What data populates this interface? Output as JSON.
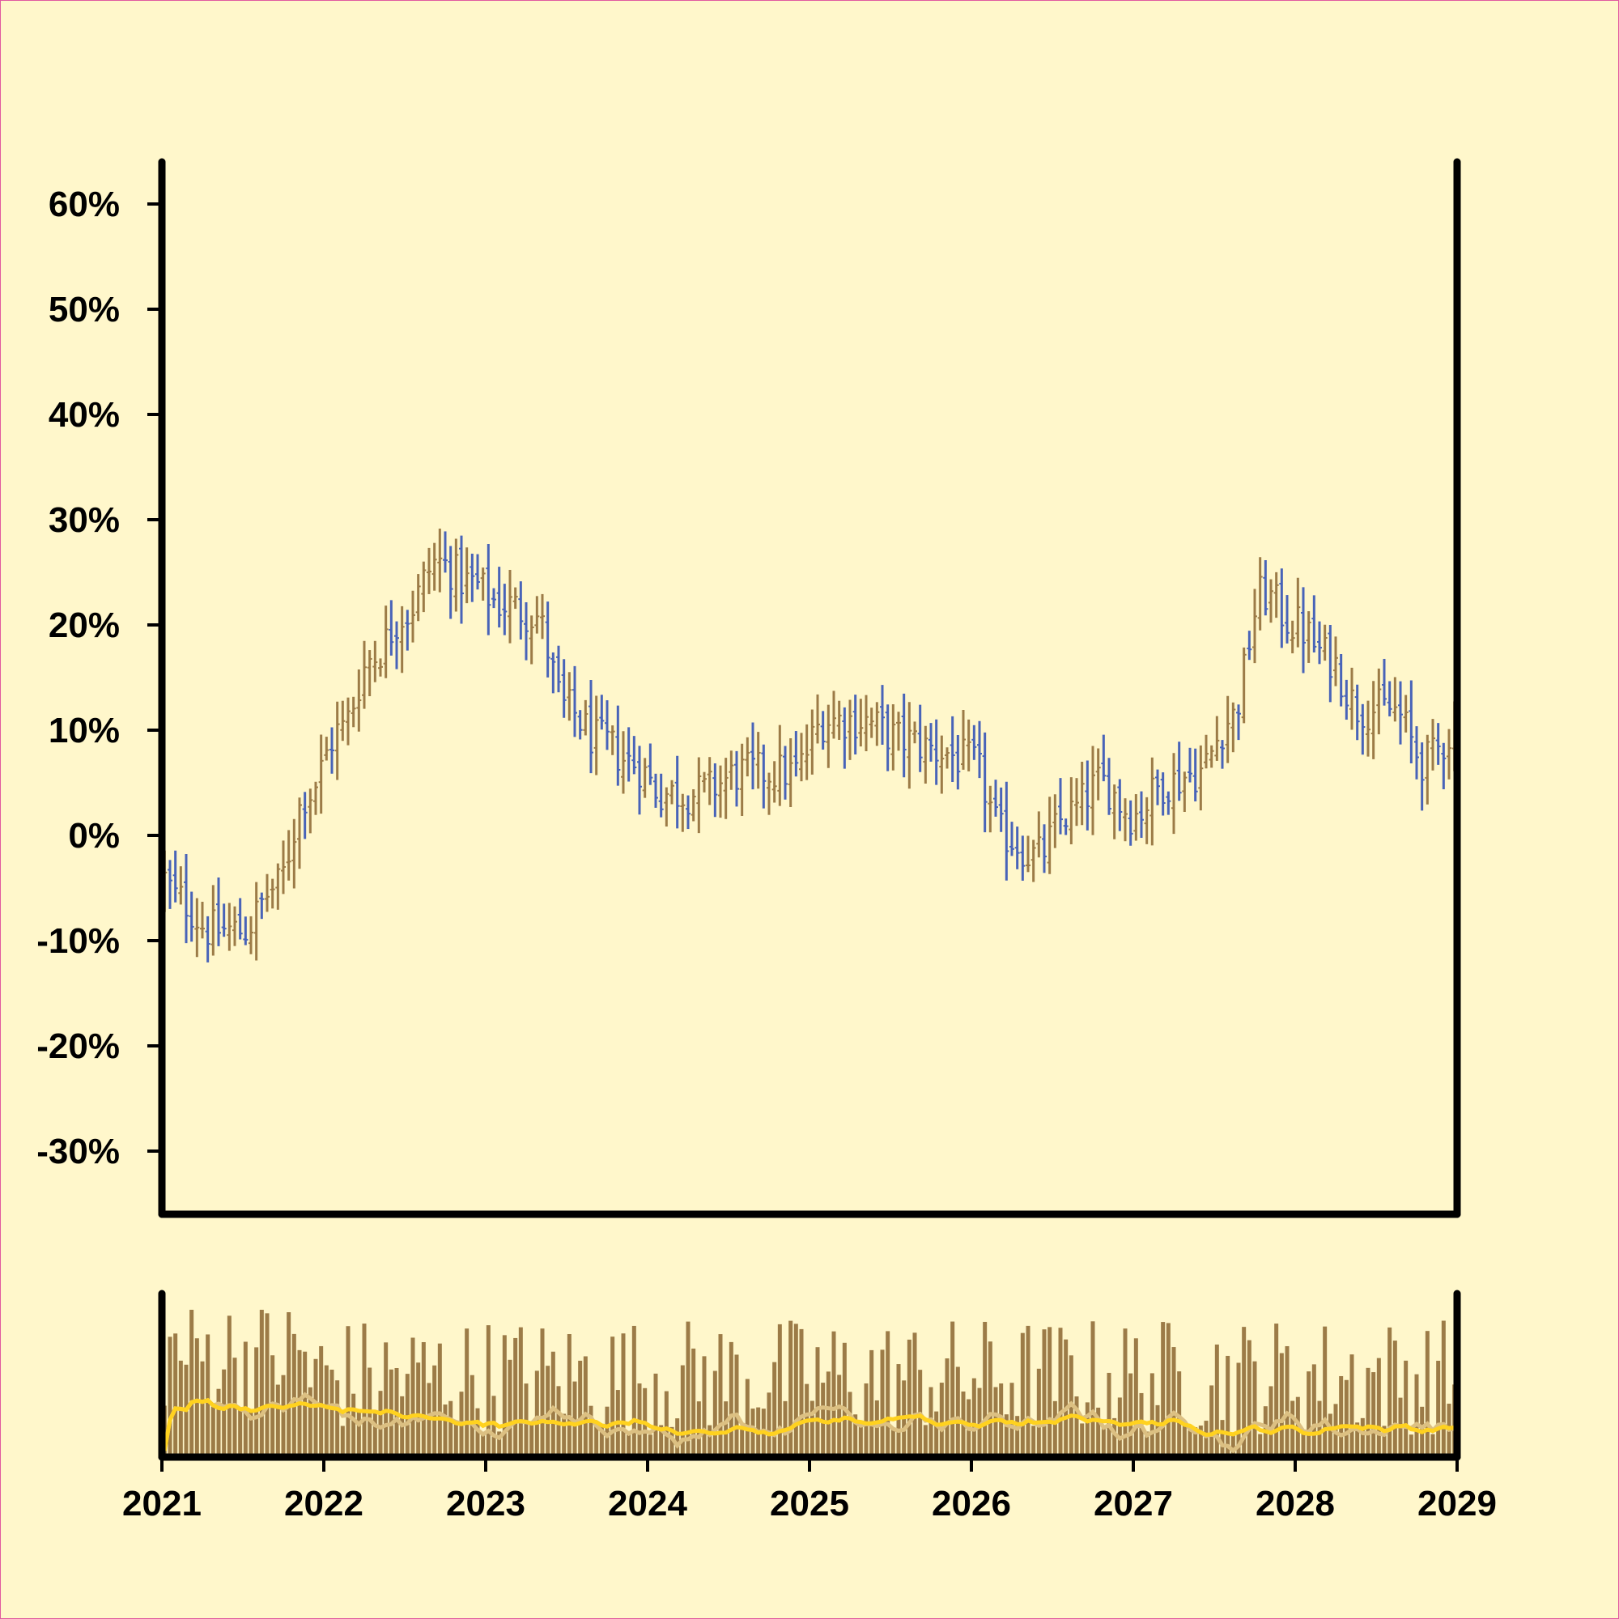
{
  "colors": {
    "background": "#fff7cb",
    "border": "#e05aa0",
    "axis": "#000000",
    "up_bar": "#9c7b47",
    "down_bar": "#4863b8",
    "volume": "#9c7b47",
    "ma_fast": "#dcc082",
    "ma_slow": "#ffd21f"
  },
  "chart_data": [
    {
      "type": "ohlc",
      "title": "",
      "xlabel": "",
      "ylabel": "",
      "ylim": [
        -36,
        64
      ],
      "xlim": [
        2021,
        2029
      ],
      "y_ticks": [
        -30,
        -20,
        -10,
        0,
        10,
        20,
        30,
        40,
        50,
        60
      ],
      "y_tick_labels": [
        "-30%",
        "-20%",
        "-10%",
        "0%",
        "10%",
        "20%",
        "30%",
        "40%",
        "50%",
        "60%"
      ],
      "x_ticks": [
        2021,
        2022,
        2023,
        2024,
        2025,
        2026,
        2027,
        2028,
        2029
      ],
      "x_tick_labels": [
        "2021",
        "2022",
        "2023",
        "2024",
        "2025",
        "2026",
        "2027",
        "2028",
        "2029"
      ],
      "grid": false,
      "close_anchors": {
        "x": [
          2021.0,
          2021.1,
          2021.3,
          2021.5,
          2021.7,
          2021.9,
          2022.1,
          2022.3,
          2022.5,
          2022.7,
          2022.9,
          2023.1,
          2023.3,
          2023.5,
          2023.7,
          2023.9,
          2024.1,
          2024.3,
          2024.6,
          2024.9,
          2025.1,
          2025.3,
          2025.6,
          2025.8,
          2026.0,
          2026.2,
          2026.4,
          2026.6,
          2026.8,
          2027.0,
          2027.2,
          2027.4,
          2027.6,
          2027.8,
          2028.0,
          2028.2,
          2028.4,
          2028.6,
          2028.8,
          2029.0
        ],
        "y": [
          -4,
          -6,
          -9,
          -9,
          -5,
          4,
          10,
          17,
          21,
          26,
          24,
          22,
          21,
          12,
          9,
          7,
          4,
          4,
          6,
          6,
          11,
          11,
          9,
          8,
          7,
          0,
          -2,
          2,
          5,
          2,
          5,
          6,
          11,
          23,
          20,
          17,
          12,
          12,
          7,
          10
        ]
      },
      "bar_count": 240,
      "bar_color_up": "#9c7b47",
      "bar_color_down": "#4863b8"
    },
    {
      "type": "bar",
      "title": "",
      "xlabel": "",
      "ylabel": "",
      "xlim": [
        2021,
        2029
      ],
      "volume_relative_range": [
        0,
        1
      ],
      "moving_averages": [
        {
          "window": "short",
          "color": "#dcc082"
        },
        {
          "window": "long",
          "color": "#ffd21f"
        }
      ]
    }
  ]
}
